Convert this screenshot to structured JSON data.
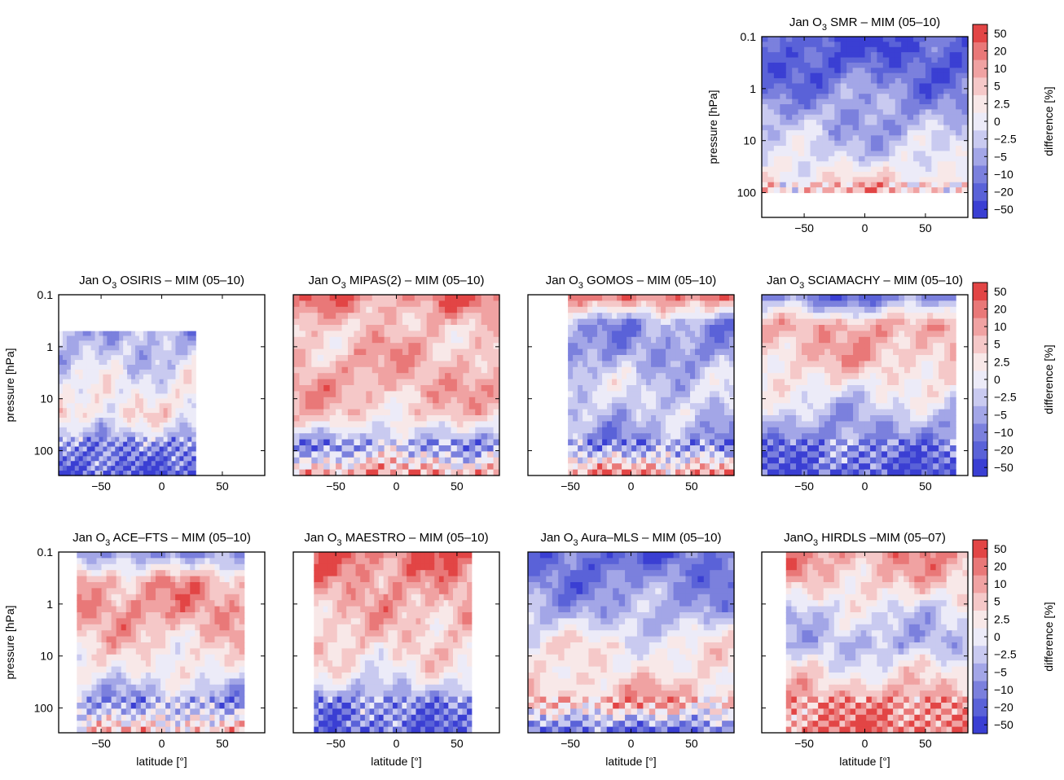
{
  "chart_data": {
    "type": "heatmap",
    "colorbar": {
      "label": "difference [%]",
      "levels": [
        "-50",
        "-20",
        "-10",
        "-5",
        "-2.5",
        "0",
        "2.5",
        "5",
        "10",
        "20",
        "50"
      ],
      "colors": [
        "#3a3fd3",
        "#5a62d8",
        "#7b80dd",
        "#a3a6e7",
        "#c9caf0",
        "#ecebf8",
        "#f8e8e8",
        "#f5c8c8",
        "#f0a2a2",
        "#e97878",
        "#e24545"
      ]
    },
    "x_ticks": [
      "-50",
      "0",
      "50"
    ],
    "x_values": [
      -50,
      0,
      50
    ],
    "xlim": [
      -85,
      85
    ],
    "y_ticks": [
      "0.1",
      "1",
      "10",
      "100"
    ],
    "y_values": [
      0.1,
      1,
      10,
      100
    ],
    "ylim": [
      0.1,
      300
    ],
    "y_scale": "log",
    "ylabel": "pressure [hPa]",
    "xlabel": "latitude [°]",
    "panels": [
      {
        "title_pre": "Jan O",
        "title_post": " SMR – MIM (05–10)",
        "lat_range": [
          -85,
          85
        ],
        "p_bottom": 100
      },
      {
        "title_pre": "Jan O",
        "title_post": " OSIRIS – MIM (05–10)",
        "lat_range": [
          -85,
          28
        ],
        "p_top": 0.5
      },
      {
        "title_pre": "Jan O",
        "title_post": " MIPAS(2) – MIM (05–10)",
        "lat_range": [
          -85,
          85
        ]
      },
      {
        "title_pre": "Jan O",
        "title_post": " GOMOS – MIM (05–10)",
        "lat_range": [
          -52,
          85
        ]
      },
      {
        "title_pre": "Jan O",
        "title_post": " SCIAMACHY – MIM (05–10)",
        "lat_range": [
          -85,
          75
        ]
      },
      {
        "title_pre": "Jan O",
        "title_post": " ACE–FTS – MIM (05–10)",
        "lat_range": [
          -70,
          68
        ]
      },
      {
        "title_pre": "Jan O",
        "title_post": " MAESTRO – MIM (05–10)",
        "lat_range": [
          -68,
          62
        ]
      },
      {
        "title_pre": "Jan O",
        "title_post": " Aura–MLS – MIM (05–10)",
        "lat_range": [
          -85,
          85
        ]
      },
      {
        "title_pre": "JanO",
        "title_post": " HIRDLS –MIM (05–07)",
        "lat_range": [
          -65,
          85
        ]
      }
    ]
  }
}
